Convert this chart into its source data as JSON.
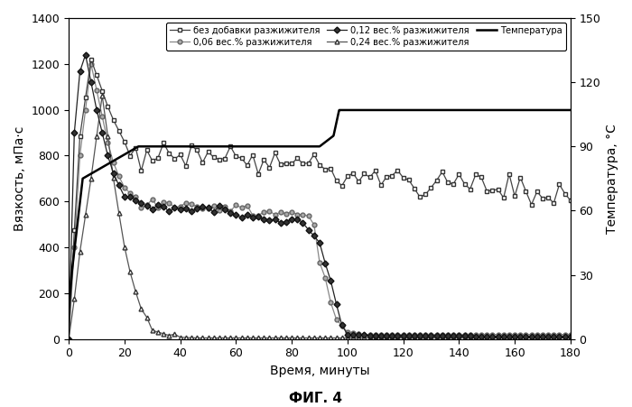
{
  "xlabel": "Время, минуты",
  "ylabel_left": "Вязкость, мПа·с",
  "ylabel_right": "Температура, °C",
  "caption": "ФИГ. 4",
  "xlim": [
    0,
    180
  ],
  "ylim_left": [
    0,
    1400
  ],
  "ylim_right": [
    0,
    150
  ],
  "xticks": [
    0,
    20,
    40,
    60,
    80,
    100,
    120,
    140,
    160,
    180
  ],
  "yticks_left": [
    0,
    200,
    400,
    600,
    800,
    1000,
    1200,
    1400
  ],
  "yticks_right": [
    0,
    30,
    60,
    90,
    120,
    150
  ],
  "legend": [
    "без добавки разжижителя",
    "0,06 вес.% разжижителя",
    "0,12 вес.% разжижителя",
    "0,24 вес.% разжижителя",
    "Температура"
  ]
}
